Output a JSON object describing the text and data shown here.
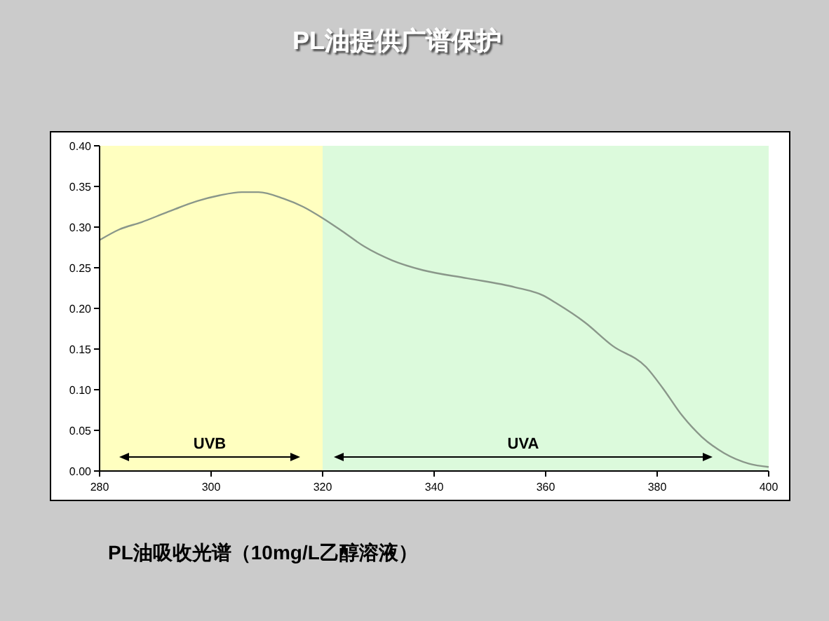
{
  "chart_data": {
    "type": "line",
    "title": "PL油提供广谱保护",
    "annotations": [
      "PL油吸收光谱（10mg/L乙醇溶液）"
    ],
    "x": [
      280,
      283.5,
      287.5,
      292,
      297.5,
      301.5,
      305.5,
      308.5,
      313,
      316.5,
      320,
      323.5,
      327.5,
      332.5,
      338,
      346,
      354.5,
      359.5,
      362,
      367,
      372,
      378,
      381,
      384.5,
      388,
      392,
      396.5,
      400
    ],
    "series": [
      {
        "color": "#8a978a",
        "values": [
          0.284,
          0.297,
          0.306,
          0.318,
          0.332,
          0.339,
          0.343,
          0.343,
          0.335,
          0.325,
          0.311,
          0.295,
          0.276,
          0.259,
          0.247,
          0.237,
          0.226,
          0.216,
          0.206,
          0.183,
          0.154,
          0.128,
          0.102,
          0.068,
          0.042,
          0.022,
          0.009,
          0.005
        ]
      }
    ],
    "xlim": [
      280,
      400
    ],
    "xticks": [
      280,
      300,
      320,
      340,
      360,
      380,
      400
    ],
    "ylim": [
      0,
      0.4
    ],
    "yticks": [
      {
        "value": 0,
        "label": "0.00"
      },
      0.05,
      {
        "value": 0.1,
        "label": "0.10"
      },
      0.15,
      {
        "value": 0.2,
        "label": "0.20"
      },
      0.25,
      {
        "value": 0.3,
        "label": "0.30"
      },
      0.35,
      {
        "value": 0.4,
        "label": "0.40"
      }
    ],
    "bands": [
      {
        "axis": "x",
        "from": 280,
        "to": 320,
        "label": "UVB",
        "color": "#ffffc0"
      },
      {
        "axis": "x",
        "from": 320,
        "to": 400,
        "label": "UVA",
        "color": "#dcfadc"
      }
    ]
  }
}
